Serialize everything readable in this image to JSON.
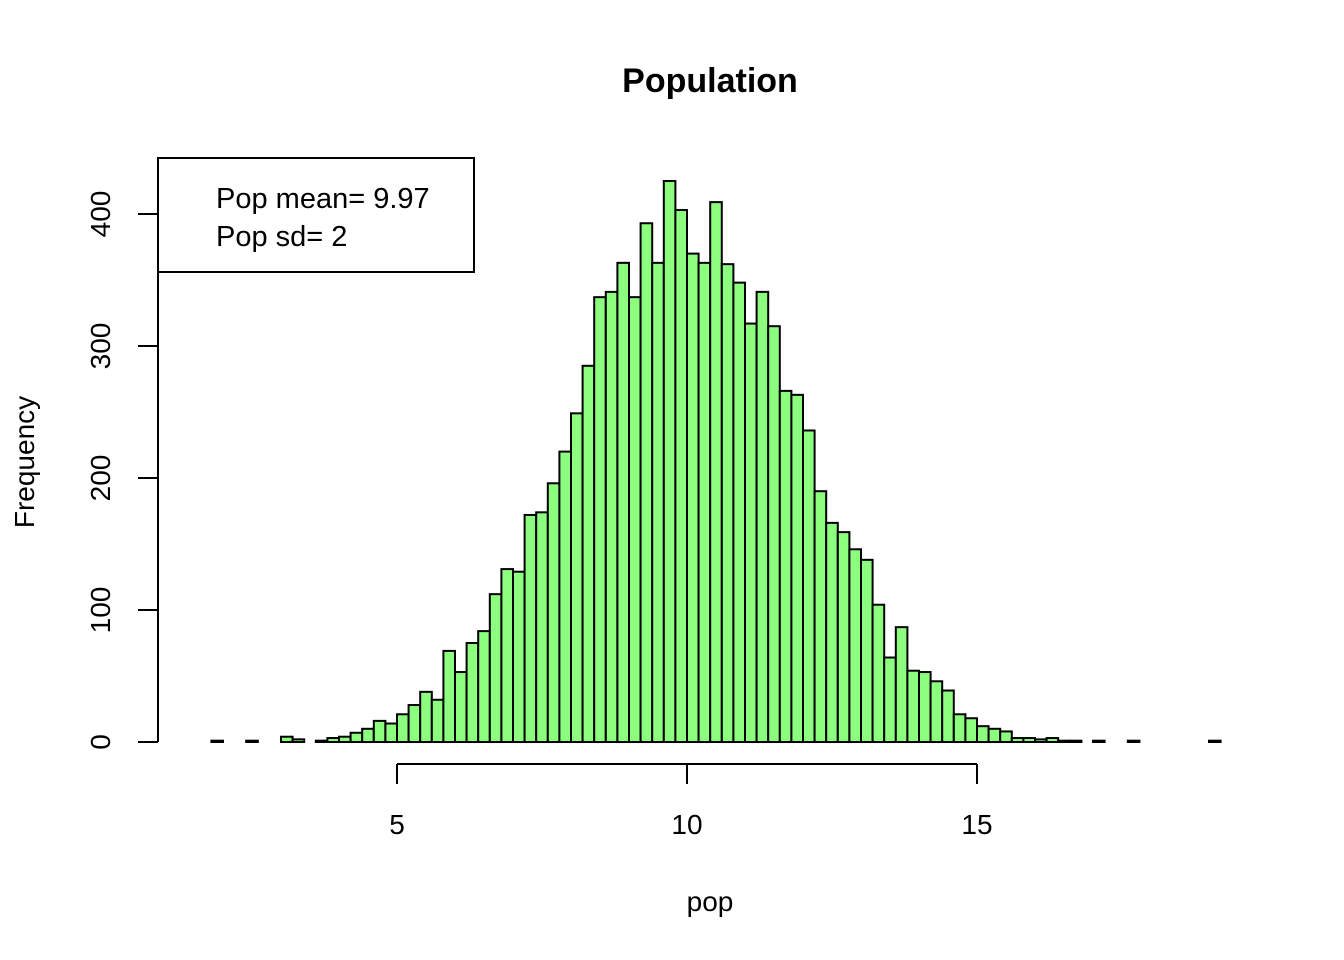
{
  "chart_data": {
    "type": "bar",
    "title": "Population",
    "xlabel": "pop",
    "ylabel": "Frequency",
    "bar_color": "#8DFF7F",
    "xlim": [
      1.6,
      19.3
    ],
    "ylim": [
      0,
      425
    ],
    "x_ticks": [
      5,
      10,
      15
    ],
    "y_ticks": [
      0,
      100,
      200,
      300,
      400
    ],
    "bin_width": 0.2,
    "bins_start": 1.8,
    "values": [
      1,
      0,
      0,
      1,
      0,
      0,
      4,
      2,
      0,
      1,
      3,
      4,
      7,
      10,
      16,
      14,
      21,
      28,
      38,
      32,
      69,
      53,
      75,
      84,
      112,
      131,
      129,
      172,
      174,
      196,
      220,
      249,
      285,
      337,
      341,
      363,
      337,
      393,
      363,
      425,
      403,
      370,
      363,
      409,
      362,
      348,
      317,
      341,
      315,
      266,
      263,
      236,
      190,
      166,
      159,
      146,
      138,
      104,
      64,
      87,
      54,
      53,
      46,
      39,
      21,
      18,
      12,
      10,
      8,
      3,
      3,
      2,
      3,
      1,
      1,
      0,
      1,
      0,
      0,
      1,
      0,
      0,
      0,
      0,
      0,
      0,
      1
    ],
    "legend": {
      "position": "top-left",
      "lines": [
        "Pop mean=  9.97",
        "Pop sd=  2"
      ]
    }
  }
}
